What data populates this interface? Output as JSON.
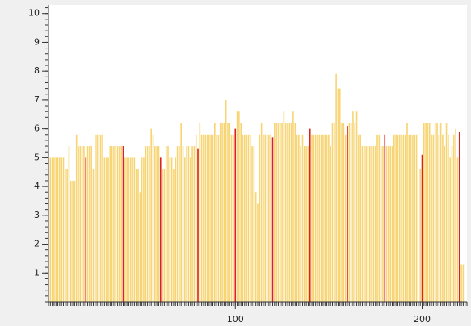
{
  "chart_data": {
    "type": "bar",
    "series": [
      {
        "color": "#f7d474",
        "x": [
          1,
          2,
          3,
          4,
          5,
          6,
          7,
          8,
          9,
          10,
          11,
          12,
          13,
          14,
          15,
          16,
          17,
          18,
          19,
          21,
          22,
          23,
          24,
          25,
          26,
          27,
          28,
          29,
          30,
          31,
          32,
          33,
          34,
          35,
          36,
          37,
          38,
          39,
          41,
          42,
          43,
          44,
          45,
          46,
          47,
          48,
          49,
          50,
          51,
          52,
          53,
          54,
          55,
          56,
          57,
          58,
          59,
          61,
          62,
          63,
          64,
          65,
          66,
          67,
          68,
          69,
          70,
          71,
          72,
          73,
          74,
          75,
          76,
          77,
          78,
          79,
          81,
          82,
          83,
          84,
          85,
          86,
          87,
          88,
          89,
          90,
          91,
          92,
          93,
          94,
          95,
          96,
          97,
          98,
          99,
          101,
          102,
          103,
          104,
          105,
          106,
          107,
          108,
          109,
          110,
          111,
          112,
          113,
          114,
          115,
          116,
          117,
          118,
          119,
          121,
          122,
          123,
          124,
          125,
          126,
          127,
          128,
          129,
          130,
          131,
          132,
          133,
          134,
          135,
          136,
          137,
          138,
          139,
          141,
          142,
          143,
          144,
          145,
          146,
          147,
          148,
          149,
          150,
          151,
          152,
          153,
          154,
          155,
          156,
          157,
          158,
          159,
          161,
          162,
          163,
          164,
          165,
          166,
          167,
          168,
          169,
          170,
          171,
          172,
          173,
          174,
          175,
          176,
          177,
          178,
          179,
          181,
          182,
          183,
          184,
          185,
          186,
          187,
          188,
          189,
          190,
          191,
          192,
          193,
          194,
          195,
          196,
          197,
          199,
          201,
          202,
          203,
          204,
          205,
          206,
          207,
          208,
          209,
          210,
          211,
          212,
          213,
          214,
          215,
          216,
          217,
          218,
          219,
          221,
          222
        ],
        "values": [
          5,
          5,
          5,
          5,
          5,
          5,
          5,
          5,
          4.6,
          4.6,
          5.4,
          4.2,
          4.2,
          4.2,
          5.8,
          5.4,
          5.4,
          5.4,
          5.4,
          5.4,
          5.4,
          5.4,
          4.6,
          5.8,
          5.8,
          5.8,
          5.8,
          5.8,
          5,
          5,
          5,
          5.4,
          5.4,
          5.4,
          5.4,
          5.4,
          5.4,
          5.4,
          5,
          5,
          5,
          5,
          5,
          5,
          4.6,
          4.6,
          3.8,
          5,
          5,
          5.4,
          5.4,
          5.4,
          6,
          5.8,
          5.4,
          5.4,
          5.4,
          4.6,
          4.6,
          5.4,
          5.4,
          5,
          5,
          4.6,
          5,
          5.4,
          5.4,
          6.2,
          5.4,
          5,
          5.4,
          5.4,
          5,
          5.4,
          5.4,
          5.8,
          6.2,
          5.8,
          5.8,
          5.8,
          5.8,
          5.8,
          5.8,
          5.8,
          6.2,
          5.8,
          5.8,
          6.2,
          6.2,
          6.2,
          7,
          6.2,
          6.2,
          5.8,
          5.8,
          6.6,
          6.6,
          6.2,
          5.8,
          5.8,
          5.8,
          5.8,
          5.8,
          5.4,
          5.4,
          3.8,
          3.4,
          5.8,
          6.2,
          5.8,
          5.8,
          5.8,
          5.8,
          5.8,
          6.2,
          6.2,
          6.2,
          6.2,
          6.2,
          6.6,
          6.2,
          6.2,
          6.2,
          6.2,
          6.6,
          6.2,
          5.8,
          5.8,
          5.4,
          5.8,
          5.4,
          5.4,
          5.4,
          5.8,
          5.8,
          5.8,
          5.8,
          5.8,
          5.8,
          5.8,
          5.8,
          5.8,
          5.8,
          5.4,
          6.2,
          6.2,
          7.9,
          7.4,
          7.4,
          6.2,
          6.2,
          5.8,
          6.2,
          6.2,
          6.6,
          6.2,
          6.6,
          5.8,
          5.8,
          5.4,
          5.4,
          5.4,
          5.4,
          5.4,
          5.4,
          5.4,
          5.4,
          5.8,
          5.8,
          5.4,
          5.4,
          5.4,
          5.4,
          5.4,
          5.4,
          5.8,
          5.8,
          5.8,
          5.8,
          5.8,
          5.8,
          5.8,
          6.2,
          5.8,
          5.8,
          5.8,
          5.8,
          5.8,
          4.6,
          6.2,
          6.2,
          6.2,
          6.2,
          5.8,
          5.8,
          6.2,
          6.2,
          5.8,
          6.2,
          5.8,
          5.4,
          6.2,
          5.8,
          5,
          5.4,
          5.8,
          6,
          5,
          1.3,
          1.3
        ]
      },
      {
        "color": "#e0201b",
        "x": [
          20,
          40,
          60,
          80,
          100,
          120,
          140,
          160,
          180,
          200,
          220
        ],
        "values": [
          5,
          5.4,
          5,
          5.3,
          6,
          5.7,
          6,
          6.1,
          5.8,
          5.1,
          5.9
        ]
      }
    ],
    "xlim": [
      0,
      224
    ],
    "xticks": [
      100,
      200
    ],
    "ylim": [
      0,
      10.3
    ],
    "yticks": [
      1,
      2,
      3,
      4,
      5,
      6,
      7,
      8,
      9,
      10
    ],
    "minor_ticks": {
      "x": 1,
      "y": 0.2
    }
  }
}
